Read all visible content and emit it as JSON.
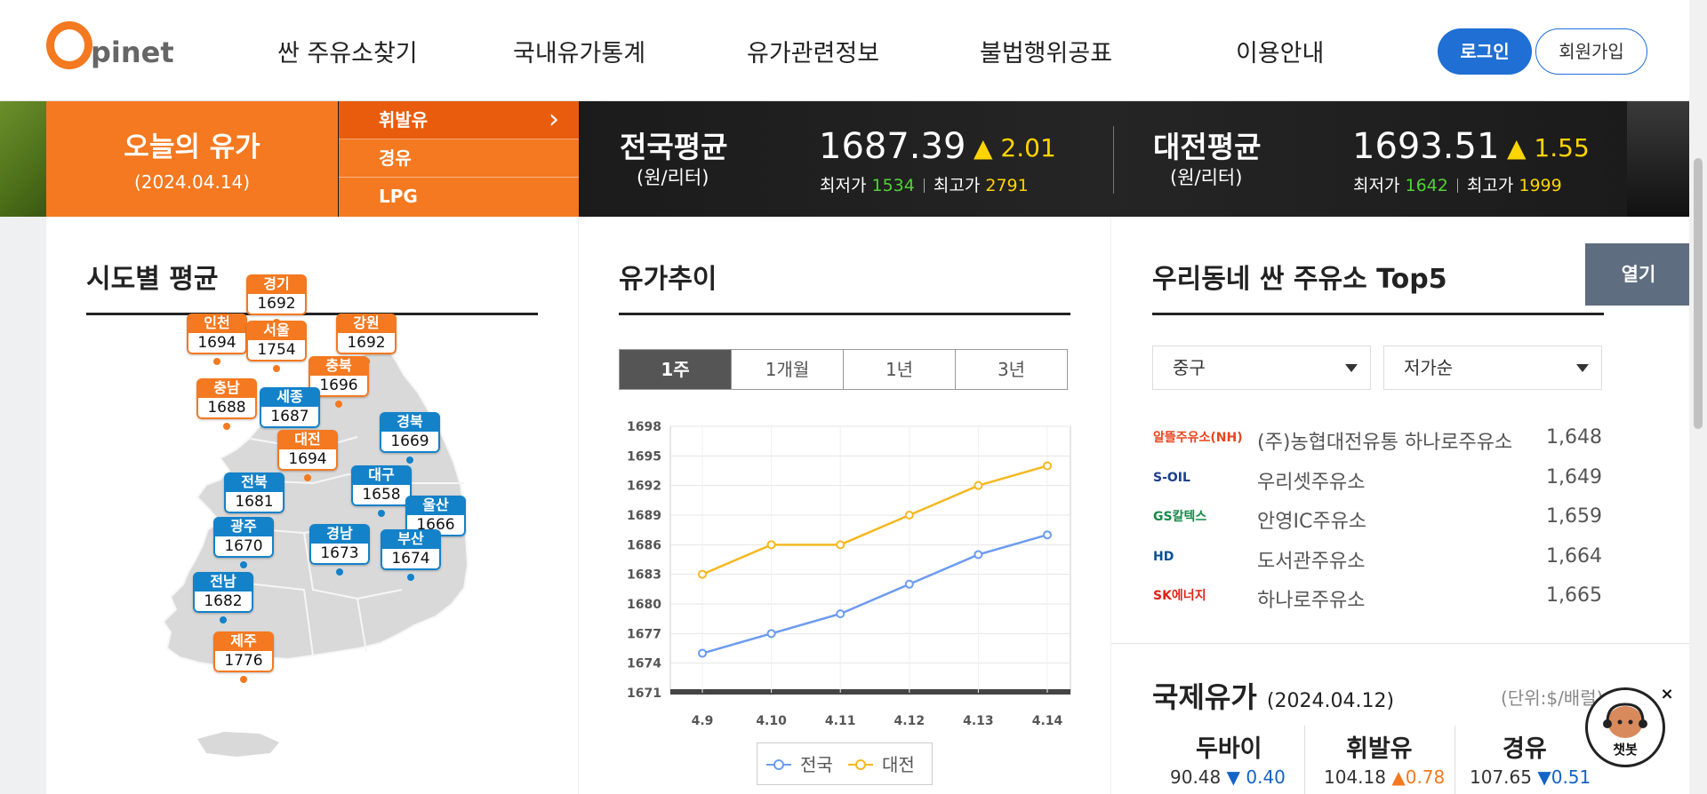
{
  "header": {
    "logo_text": "pinet",
    "nav": [
      "싼 주유소찾기",
      "국내유가통계",
      "유가관련정보",
      "불법행위공표",
      "이용안내"
    ],
    "login": "로그인",
    "signup": "회원가입"
  },
  "today": {
    "title": "오늘의 유가",
    "date": "(2024.04.14)",
    "fuel_tabs": [
      "휘발유",
      "경유",
      "LPG"
    ]
  },
  "national": {
    "label": "전국평균",
    "unit": "(원/리터)",
    "price": "1687.39",
    "delta": "▲ 2.01",
    "min_label": "최저가",
    "min": "1534",
    "max_label": "최고가",
    "max": "2791"
  },
  "local": {
    "label": "대전평균",
    "unit": "(원/리터)",
    "price": "1693.51",
    "delta": "▲ 1.55",
    "min_label": "최저가",
    "min": "1642",
    "max_label": "최고가",
    "max": "1999"
  },
  "regions": {
    "title": "시도별 평균",
    "items": [
      {
        "name": "경기",
        "value": "1692",
        "color": "orange"
      },
      {
        "name": "인천",
        "value": "1694",
        "color": "orange"
      },
      {
        "name": "서울",
        "value": "1754",
        "color": "orange"
      },
      {
        "name": "강원",
        "value": "1692",
        "color": "orange"
      },
      {
        "name": "충북",
        "value": "1696",
        "color": "orange"
      },
      {
        "name": "충남",
        "value": "1688",
        "color": "orange"
      },
      {
        "name": "세종",
        "value": "1687",
        "color": "blue"
      },
      {
        "name": "경북",
        "value": "1669",
        "color": "blue"
      },
      {
        "name": "대전",
        "value": "1694",
        "color": "orange"
      },
      {
        "name": "전북",
        "value": "1681",
        "color": "blue"
      },
      {
        "name": "대구",
        "value": "1658",
        "color": "blue"
      },
      {
        "name": "울산",
        "value": "1666",
        "color": "blue"
      },
      {
        "name": "광주",
        "value": "1670",
        "color": "blue"
      },
      {
        "name": "경남",
        "value": "1673",
        "color": "blue"
      },
      {
        "name": "부산",
        "value": "1674",
        "color": "blue"
      },
      {
        "name": "전남",
        "value": "1682",
        "color": "blue"
      },
      {
        "name": "제주",
        "value": "1776",
        "color": "orange"
      }
    ]
  },
  "trend": {
    "title": "유가추이",
    "tabs": [
      "1주",
      "1개월",
      "1년",
      "3년"
    ],
    "active_tab": "1주"
  },
  "chart_data": {
    "type": "line",
    "x": [
      "4.9",
      "4.10",
      "4.11",
      "4.12",
      "4.13",
      "4.14"
    ],
    "series": [
      {
        "name": "전국",
        "color": "#6b9bf0",
        "values": [
          1675.0,
          1677.0,
          1679.0,
          1682.0,
          1685.0,
          1687.0
        ]
      },
      {
        "name": "대전",
        "color": "#f5b822",
        "values": [
          1683.0,
          1686.0,
          1686.0,
          1689.0,
          1692.0,
          1694.0
        ]
      }
    ],
    "yticks": [
      "1698",
      "1695",
      "1692",
      "1689",
      "1686",
      "1683",
      "1680",
      "1677",
      "1674",
      "1671"
    ],
    "ylim": [
      1671,
      1698
    ],
    "grid": true,
    "legend": "bottom"
  },
  "top5": {
    "title": "우리동네 싼 주유소 Top5",
    "open_button": "열기",
    "district": "중구",
    "sort": "저가순",
    "stations": [
      {
        "brand": "알뜰주유소",
        "brand_tag": "(NH)",
        "name": "(주)농협대전유통 하나로주유소",
        "price": "1,648",
        "color": "#e8451e"
      },
      {
        "brand": "S-OIL",
        "name": "우리셋주유소",
        "price": "1,649",
        "color": "#1d3e8c"
      },
      {
        "brand": "GS칼텍스",
        "name": "안영IC주유소",
        "price": "1,659",
        "color": "#168a4a"
      },
      {
        "brand": "HD",
        "name": "도서관주유소",
        "price": "1,664",
        "color": "#0b4f93"
      },
      {
        "brand": "SK에너지",
        "name": "하나로주유소",
        "price": "1,665",
        "color": "#e2231a"
      }
    ]
  },
  "intl": {
    "title": "국제유가",
    "date": "(2024.04.12)",
    "unit": "(단위:$/배럴)",
    "items": [
      {
        "name": "두바이",
        "value": "90.48",
        "delta": "▼ 0.40",
        "dir": "down"
      },
      {
        "name": "휘발유",
        "value": "104.18",
        "delta": "▲0.78",
        "dir": "up"
      },
      {
        "name": "경유",
        "value": "107.65",
        "delta": "▼0.51",
        "dir": "down"
      }
    ]
  },
  "chatbot": {
    "label": "챗봇",
    "close": "×"
  }
}
